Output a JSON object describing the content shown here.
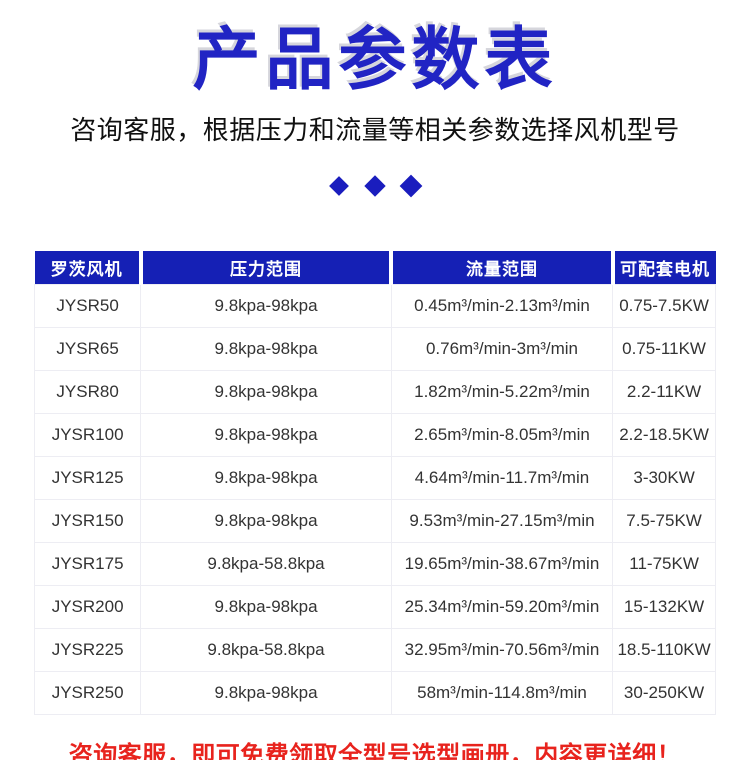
{
  "title": "产品参数表",
  "subtitle": "咨询客服，根据压力和流量等相关参数选择风机型号",
  "decor": {
    "diamond_count": 3,
    "diamond_color": "#1a1dbe"
  },
  "colors": {
    "title_blue": "#2124c4",
    "header_blue": "#1520b5",
    "alert_red": "#e8231d",
    "cell_text": "#333333",
    "cell_border": "#ededf3"
  },
  "table": {
    "headers": [
      "罗茨风机",
      "压力范围",
      "流量范围",
      "可配套电机"
    ],
    "rows": [
      [
        "JYSR50",
        "9.8kpa-98kpa",
        "0.45m³/min-2.13m³/min",
        "0.75-7.5KW"
      ],
      [
        "JYSR65",
        "9.8kpa-98kpa",
        "0.76m³/min-3m³/min",
        "0.75-11KW"
      ],
      [
        "JYSR80",
        "9.8kpa-98kpa",
        "1.82m³/min-5.22m³/min",
        "2.2-11KW"
      ],
      [
        "JYSR100",
        "9.8kpa-98kpa",
        "2.65m³/min-8.05m³/min",
        "2.2-18.5KW"
      ],
      [
        "JYSR125",
        "9.8kpa-98kpa",
        "4.64m³/min-11.7m³/min",
        "3-30KW"
      ],
      [
        "JYSR150",
        "9.8kpa-98kpa",
        "9.53m³/min-27.15m³/min",
        "7.5-75KW"
      ],
      [
        "JYSR175",
        "9.8kpa-58.8kpa",
        "19.65m³/min-38.67m³/min",
        "11-75KW"
      ],
      [
        "JYSR200",
        "9.8kpa-98kpa",
        "25.34m³/min-59.20m³/min",
        "15-132KW"
      ],
      [
        "JYSR225",
        "9.8kpa-58.8kpa",
        "32.95m³/min-70.56m³/min",
        "18.5-110KW"
      ],
      [
        "JYSR250",
        "9.8kpa-98kpa",
        "58m³/min-114.8m³/min",
        "30-250KW"
      ]
    ]
  },
  "footer_note": "咨询客服，即可免费领取全型号选型画册，内容更详细！"
}
